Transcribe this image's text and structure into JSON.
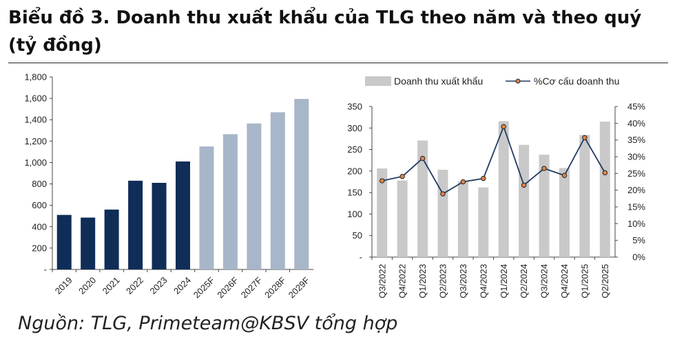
{
  "page": {
    "title": "Biểu đồ 3. Doanh thu xuất khẩu của TLG theo năm và theo quý (tỷ đồng)",
    "source": "Nguồn: TLG, Primeteam@KBSV tổng hợp"
  },
  "colors": {
    "actual": "#0f2d57",
    "forecast": "#a8b6c9",
    "quarter_bar": "#c9c9c9",
    "line": "#1f3a60",
    "marker": "#e0844a"
  },
  "chart_data": [
    {
      "type": "bar",
      "categories": [
        "2019",
        "2020",
        "2021",
        "2022",
        "2023",
        "2024",
        "2025F",
        "2026F",
        "2027F",
        "2028F",
        "2029F"
      ],
      "values": [
        510,
        485,
        560,
        830,
        810,
        1010,
        1150,
        1265,
        1365,
        1470,
        1595
      ],
      "forecast_from": "2025F",
      "ylim": [
        0,
        1800
      ],
      "yticks": [
        0,
        200,
        400,
        600,
        800,
        1000,
        1200,
        1400,
        1600,
        1800
      ],
      "ytick_labels": [
        "-",
        "200",
        "400",
        "600",
        "800",
        "1,000",
        "1,200",
        "1,400",
        "1,600",
        "1,800"
      ],
      "grid": false
    },
    {
      "type": "bar+line",
      "categories": [
        "Q3/2022",
        "Q4/2022",
        "Q1/2023",
        "Q2/2023",
        "Q3/2023",
        "Q4/2023",
        "Q1/2024",
        "Q2/2024",
        "Q3/2024",
        "Q4/2024",
        "Q1/2025",
        "Q2/2025"
      ],
      "series": [
        {
          "name": "Doanh thu xuất khẩu",
          "type": "bar",
          "axis": "left",
          "values": [
            206,
            178,
            271,
            203,
            176,
            162,
            316,
            261,
            238,
            207,
            284,
            315
          ]
        },
        {
          "name": "%Cơ cấu doanh thu",
          "type": "line",
          "axis": "right",
          "values": [
            0.228,
            0.241,
            0.295,
            0.189,
            0.225,
            0.235,
            0.39,
            0.215,
            0.265,
            0.244,
            0.357,
            0.252
          ]
        }
      ],
      "ylim_left": [
        0,
        350
      ],
      "yticks_left": [
        0,
        50,
        100,
        150,
        200,
        250,
        300,
        350
      ],
      "ytick_labels_left": [
        "-",
        "50",
        "100",
        "150",
        "200",
        "250",
        "300",
        "350"
      ],
      "ylim_right": [
        0,
        0.45
      ],
      "yticks_right": [
        0,
        0.05,
        0.1,
        0.15,
        0.2,
        0.25,
        0.3,
        0.35,
        0.4,
        0.45
      ],
      "ytick_labels_right": [
        "0%",
        "5%",
        "10%",
        "15%",
        "20%",
        "25%",
        "30%",
        "35%",
        "40%",
        "45%"
      ],
      "legend_position": "top",
      "grid": false
    }
  ]
}
